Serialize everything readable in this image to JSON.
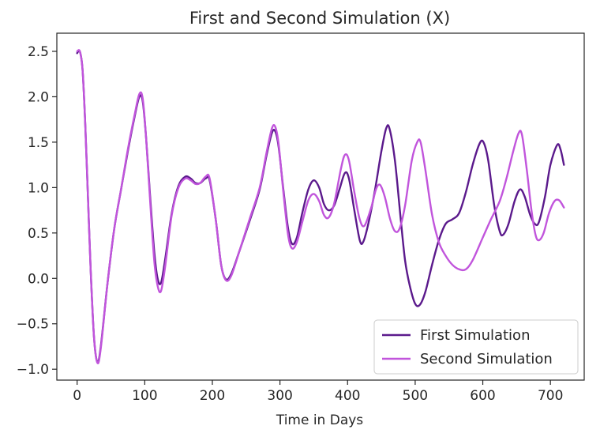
{
  "chart_data": {
    "type": "line",
    "title": "First and Second Simulation (X)",
    "xlabel": "Time in Days",
    "ylabel": "",
    "xlim": [
      -30,
      750
    ],
    "ylim": [
      -1.12,
      2.7
    ],
    "xticks": [
      0,
      100,
      200,
      300,
      400,
      500,
      600,
      700
    ],
    "xtick_labels": [
      "0",
      "100",
      "200",
      "300",
      "400",
      "500",
      "600",
      "700"
    ],
    "yticks": [
      -1.0,
      -0.5,
      0.0,
      0.5,
      1.0,
      1.5,
      2.0,
      2.5
    ],
    "ytick_labels": [
      "−1.0",
      "−0.5",
      "0.0",
      "0.5",
      "1.0",
      "1.5",
      "2.0",
      "2.5"
    ],
    "grid": false,
    "legend_position": "lower-right",
    "series": [
      {
        "name": "First Simulation",
        "color": "#5b1a8c",
        "points": [
          [
            0,
            2.48
          ],
          [
            4,
            2.5
          ],
          [
            8,
            2.3
          ],
          [
            12,
            1.7
          ],
          [
            16,
            0.9
          ],
          [
            20,
            0.1
          ],
          [
            25,
            -0.65
          ],
          [
            30,
            -0.92
          ],
          [
            35,
            -0.75
          ],
          [
            45,
            -0.05
          ],
          [
            55,
            0.55
          ],
          [
            65,
            0.98
          ],
          [
            75,
            1.4
          ],
          [
            85,
            1.78
          ],
          [
            92,
            2.0
          ],
          [
            97,
            1.95
          ],
          [
            102,
            1.55
          ],
          [
            108,
            0.9
          ],
          [
            114,
            0.3
          ],
          [
            119,
            0.0
          ],
          [
            124,
            -0.05
          ],
          [
            130,
            0.2
          ],
          [
            140,
            0.72
          ],
          [
            150,
            1.02
          ],
          [
            160,
            1.12
          ],
          [
            168,
            1.1
          ],
          [
            175,
            1.05
          ],
          [
            182,
            1.05
          ],
          [
            190,
            1.1
          ],
          [
            196,
            1.08
          ],
          [
            205,
            0.65
          ],
          [
            213,
            0.15
          ],
          [
            220,
            -0.01
          ],
          [
            228,
            0.05
          ],
          [
            240,
            0.3
          ],
          [
            255,
            0.63
          ],
          [
            270,
            0.98
          ],
          [
            280,
            1.35
          ],
          [
            288,
            1.6
          ],
          [
            293,
            1.62
          ],
          [
            298,
            1.45
          ],
          [
            305,
            0.98
          ],
          [
            312,
            0.55
          ],
          [
            318,
            0.38
          ],
          [
            325,
            0.45
          ],
          [
            333,
            0.72
          ],
          [
            342,
            0.98
          ],
          [
            350,
            1.08
          ],
          [
            358,
            1.0
          ],
          [
            365,
            0.82
          ],
          [
            372,
            0.75
          ],
          [
            380,
            0.8
          ],
          [
            388,
            0.98
          ],
          [
            396,
            1.16
          ],
          [
            402,
            1.1
          ],
          [
            410,
            0.75
          ],
          [
            418,
            0.42
          ],
          [
            423,
            0.4
          ],
          [
            430,
            0.58
          ],
          [
            440,
            0.95
          ],
          [
            450,
            1.4
          ],
          [
            457,
            1.65
          ],
          [
            462,
            1.65
          ],
          [
            470,
            1.3
          ],
          [
            478,
            0.7
          ],
          [
            485,
            0.2
          ],
          [
            492,
            -0.08
          ],
          [
            500,
            -0.28
          ],
          [
            507,
            -0.29
          ],
          [
            515,
            -0.15
          ],
          [
            525,
            0.15
          ],
          [
            535,
            0.42
          ],
          [
            545,
            0.6
          ],
          [
            555,
            0.65
          ],
          [
            565,
            0.72
          ],
          [
            575,
            0.95
          ],
          [
            585,
            1.25
          ],
          [
            595,
            1.48
          ],
          [
            601,
            1.5
          ],
          [
            608,
            1.3
          ],
          [
            617,
            0.8
          ],
          [
            625,
            0.52
          ],
          [
            630,
            0.48
          ],
          [
            638,
            0.6
          ],
          [
            647,
            0.85
          ],
          [
            655,
            0.98
          ],
          [
            662,
            0.9
          ],
          [
            670,
            0.7
          ],
          [
            677,
            0.6
          ],
          [
            683,
            0.62
          ],
          [
            692,
            0.9
          ],
          [
            700,
            1.25
          ],
          [
            710,
            1.47
          ],
          [
            715,
            1.42
          ],
          [
            720,
            1.25
          ]
        ]
      },
      {
        "name": "Second Simulation",
        "color": "#c155dc",
        "points": [
          [
            0,
            2.5
          ],
          [
            4,
            2.5
          ],
          [
            8,
            2.3
          ],
          [
            12,
            1.7
          ],
          [
            16,
            0.9
          ],
          [
            20,
            0.1
          ],
          [
            25,
            -0.65
          ],
          [
            30,
            -0.93
          ],
          [
            35,
            -0.77
          ],
          [
            45,
            -0.05
          ],
          [
            55,
            0.55
          ],
          [
            65,
            0.98
          ],
          [
            75,
            1.42
          ],
          [
            85,
            1.8
          ],
          [
            92,
            2.03
          ],
          [
            97,
            1.98
          ],
          [
            102,
            1.55
          ],
          [
            108,
            0.85
          ],
          [
            114,
            0.2
          ],
          [
            119,
            -0.08
          ],
          [
            124,
            -0.14
          ],
          [
            130,
            0.12
          ],
          [
            140,
            0.7
          ],
          [
            150,
            1.0
          ],
          [
            160,
            1.1
          ],
          [
            168,
            1.08
          ],
          [
            175,
            1.04
          ],
          [
            182,
            1.05
          ],
          [
            190,
            1.12
          ],
          [
            196,
            1.1
          ],
          [
            205,
            0.65
          ],
          [
            213,
            0.15
          ],
          [
            220,
            -0.02
          ],
          [
            228,
            0.03
          ],
          [
            240,
            0.3
          ],
          [
            255,
            0.65
          ],
          [
            270,
            1.0
          ],
          [
            280,
            1.38
          ],
          [
            288,
            1.65
          ],
          [
            293,
            1.67
          ],
          [
            298,
            1.48
          ],
          [
            305,
            0.95
          ],
          [
            312,
            0.48
          ],
          [
            318,
            0.33
          ],
          [
            325,
            0.4
          ],
          [
            333,
            0.62
          ],
          [
            342,
            0.86
          ],
          [
            350,
            0.93
          ],
          [
            358,
            0.85
          ],
          [
            365,
            0.7
          ],
          [
            372,
            0.67
          ],
          [
            380,
            0.82
          ],
          [
            390,
            1.2
          ],
          [
            396,
            1.36
          ],
          [
            402,
            1.3
          ],
          [
            410,
            0.95
          ],
          [
            418,
            0.65
          ],
          [
            425,
            0.58
          ],
          [
            435,
            0.78
          ],
          [
            442,
            0.98
          ],
          [
            448,
            1.03
          ],
          [
            455,
            0.9
          ],
          [
            463,
            0.65
          ],
          [
            470,
            0.52
          ],
          [
            477,
            0.55
          ],
          [
            485,
            0.8
          ],
          [
            495,
            1.3
          ],
          [
            503,
            1.5
          ],
          [
            508,
            1.5
          ],
          [
            515,
            1.2
          ],
          [
            525,
            0.7
          ],
          [
            535,
            0.4
          ],
          [
            545,
            0.25
          ],
          [
            555,
            0.15
          ],
          [
            565,
            0.1
          ],
          [
            575,
            0.1
          ],
          [
            585,
            0.2
          ],
          [
            600,
            0.45
          ],
          [
            612,
            0.65
          ],
          [
            625,
            0.85
          ],
          [
            635,
            1.1
          ],
          [
            645,
            1.4
          ],
          [
            653,
            1.6
          ],
          [
            658,
            1.58
          ],
          [
            665,
            1.2
          ],
          [
            672,
            0.75
          ],
          [
            678,
            0.48
          ],
          [
            683,
            0.42
          ],
          [
            690,
            0.5
          ],
          [
            698,
            0.72
          ],
          [
            706,
            0.85
          ],
          [
            713,
            0.86
          ],
          [
            720,
            0.78
          ]
        ]
      }
    ]
  }
}
